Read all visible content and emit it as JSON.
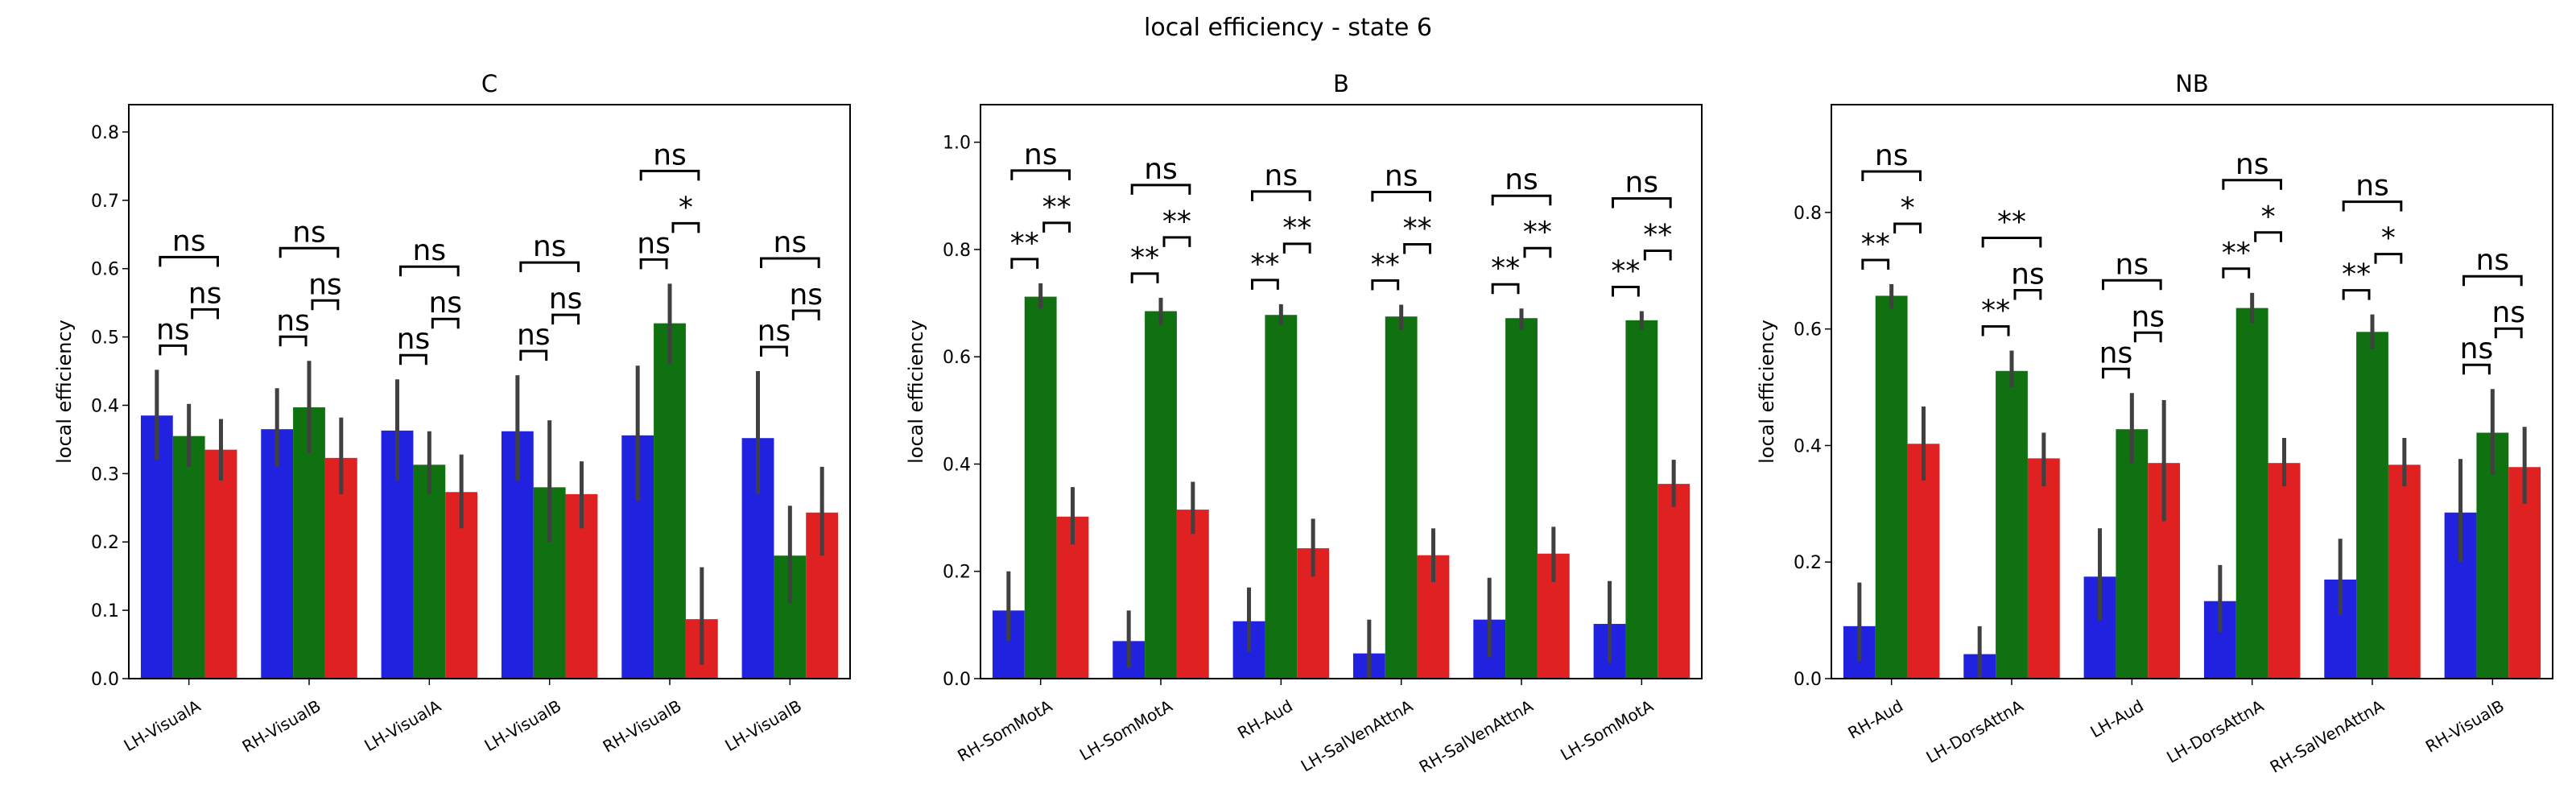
{
  "figure": {
    "suptitle": "local efficiency - state 6"
  },
  "colors": {
    "series_a": "#2121e0",
    "series_b": "#0f710f",
    "series_c": "#e02121",
    "errorbar": "#404040"
  },
  "chart_data": [
    {
      "type": "bar",
      "title": "C",
      "ylabel": "local efficiency",
      "ylim": [
        0,
        0.84
      ],
      "yticks": [
        0.0,
        0.1,
        0.2,
        0.3,
        0.4,
        0.5,
        0.6,
        0.7,
        0.8
      ],
      "ytick_labels": [
        "0.0",
        "0.1",
        "0.2",
        "0.3",
        "0.4",
        "0.5",
        "0.6",
        "0.7",
        "0.8"
      ],
      "categories": [
        "LH-VisualA",
        "RH-VisualB",
        "LH-VisualA",
        "LH-VisualB",
        "RH-VisualB",
        "LH-VisualB"
      ],
      "series": [
        {
          "values": [
            0.385,
            0.365,
            0.363,
            0.362,
            0.356,
            0.352
          ],
          "err_low": [
            0.32,
            0.31,
            0.29,
            0.29,
            0.26,
            0.27
          ],
          "err_high": [
            0.452,
            0.425,
            0.438,
            0.444,
            0.458,
            0.45
          ]
        },
        {
          "values": [
            0.355,
            0.397,
            0.313,
            0.28,
            0.52,
            0.18
          ],
          "err_low": [
            0.31,
            0.33,
            0.27,
            0.2,
            0.46,
            0.11
          ],
          "err_high": [
            0.402,
            0.465,
            0.362,
            0.378,
            0.578,
            0.253
          ]
        },
        {
          "values": [
            0.335,
            0.323,
            0.273,
            0.27,
            0.087,
            0.243
          ],
          "err_low": [
            0.29,
            0.27,
            0.22,
            0.22,
            0.02,
            0.18
          ],
          "err_high": [
            0.38,
            0.382,
            0.328,
            0.318,
            0.163,
            0.31
          ]
        }
      ],
      "annotations": [
        {
          "groups": [
            [
              "ns",
              "ns",
              "ns"
            ],
            [
              "ns",
              "ns",
              "ns"
            ],
            [
              "ns",
              "ns",
              "ns"
            ],
            [
              "ns",
              "ns",
              "ns"
            ],
            [
              "ns",
              "*",
              "ns"
            ],
            [
              "ns",
              "ns",
              "ns"
            ]
          ]
        }
      ]
    },
    {
      "type": "bar",
      "title": "B",
      "ylabel": "local efficiency",
      "ylim": [
        0,
        1.07
      ],
      "yticks": [
        0.0,
        0.2,
        0.4,
        0.6,
        0.8,
        1.0
      ],
      "ytick_labels": [
        "0.0",
        "0.2",
        "0.4",
        "0.6",
        "0.8",
        "1.0"
      ],
      "categories": [
        "RH-SomMotA",
        "LH-SomMotA",
        "RH-Aud",
        "LH-SalVenAttnA",
        "RH-SalVenAttnA",
        "LH-SomMotA"
      ],
      "series": [
        {
          "values": [
            0.127,
            0.07,
            0.107,
            0.047,
            0.11,
            0.102
          ],
          "err_low": [
            0.07,
            0.02,
            0.05,
            0.0,
            0.04,
            0.03
          ],
          "err_high": [
            0.2,
            0.127,
            0.17,
            0.11,
            0.188,
            0.182
          ]
        },
        {
          "values": [
            0.712,
            0.685,
            0.678,
            0.675,
            0.672,
            0.668
          ],
          "err_low": [
            0.69,
            0.66,
            0.66,
            0.65,
            0.65,
            0.65
          ],
          "err_high": [
            0.737,
            0.71,
            0.698,
            0.697,
            0.69,
            0.685
          ]
        },
        {
          "values": [
            0.302,
            0.315,
            0.243,
            0.23,
            0.233,
            0.363
          ],
          "err_low": [
            0.25,
            0.27,
            0.19,
            0.18,
            0.18,
            0.32
          ],
          "err_high": [
            0.357,
            0.367,
            0.298,
            0.28,
            0.283,
            0.408
          ]
        }
      ],
      "annotations": [
        {
          "groups": [
            [
              "**",
              "**",
              "ns"
            ],
            [
              "**",
              "**",
              "ns"
            ],
            [
              "**",
              "**",
              "ns"
            ],
            [
              "**",
              "**",
              "ns"
            ],
            [
              "**",
              "**",
              "ns"
            ],
            [
              "**",
              "**",
              "ns"
            ]
          ]
        }
      ]
    },
    {
      "type": "bar",
      "title": "NB",
      "ylabel": "local efficiency",
      "ylim": [
        0,
        0.985
      ],
      "yticks": [
        0.0,
        0.2,
        0.4,
        0.6,
        0.8
      ],
      "ytick_labels": [
        "0.0",
        "0.2",
        "0.4",
        "0.6",
        "0.8"
      ],
      "categories": [
        "RH-Aud",
        "LH-DorsAttnA",
        "LH-Aud",
        "LH-DorsAttnA",
        "RH-SalVenAttnA",
        "RH-VisualB"
      ],
      "series": [
        {
          "values": [
            0.09,
            0.042,
            0.175,
            0.133,
            0.17,
            0.285
          ],
          "err_low": [
            0.03,
            0.0,
            0.1,
            0.08,
            0.11,
            0.2
          ],
          "err_high": [
            0.165,
            0.09,
            0.258,
            0.195,
            0.24,
            0.377
          ]
        },
        {
          "values": [
            0.657,
            0.528,
            0.428,
            0.636,
            0.595,
            0.422
          ],
          "err_low": [
            0.635,
            0.5,
            0.37,
            0.61,
            0.565,
            0.35
          ],
          "err_high": [
            0.677,
            0.563,
            0.49,
            0.662,
            0.625,
            0.497
          ]
        },
        {
          "values": [
            0.403,
            0.378,
            0.37,
            0.37,
            0.367,
            0.363
          ],
          "err_low": [
            0.34,
            0.33,
            0.27,
            0.33,
            0.33,
            0.3
          ],
          "err_high": [
            0.467,
            0.422,
            0.478,
            0.413,
            0.413,
            0.432
          ]
        }
      ],
      "annotations": [
        {
          "groups": [
            [
              "**",
              "*",
              "ns"
            ],
            [
              "**",
              "ns",
              "**"
            ],
            [
              "ns",
              "ns",
              "ns"
            ],
            [
              "**",
              "*",
              "ns"
            ],
            [
              "**",
              "*",
              "ns"
            ],
            [
              "ns",
              "ns",
              "ns"
            ]
          ]
        }
      ]
    }
  ]
}
